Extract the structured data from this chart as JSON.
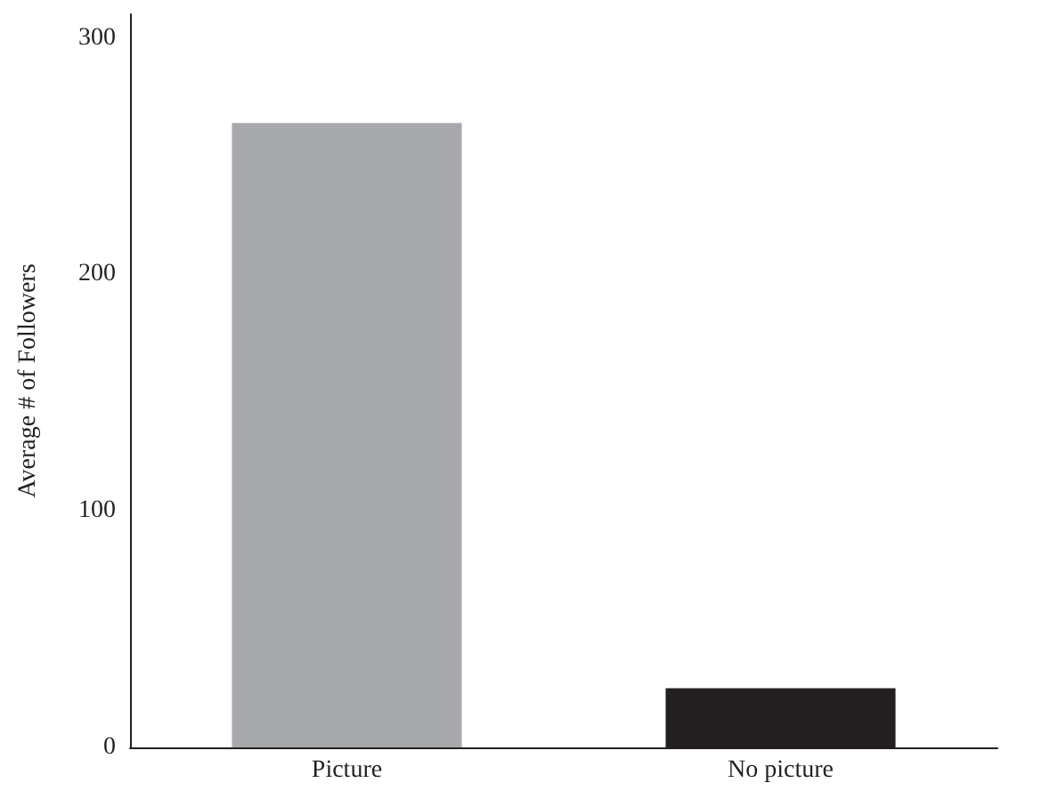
{
  "chart_data": {
    "type": "bar",
    "ylabel": "Average # of Followers",
    "categories": [
      "Picture",
      "No picture"
    ],
    "values": [
      264,
      25
    ],
    "colors": [
      "#a7a9ac",
      "#231f20"
    ],
    "ylim": [
      0,
      310
    ],
    "yticks": [
      0,
      100,
      200,
      300
    ],
    "grid": false
  }
}
